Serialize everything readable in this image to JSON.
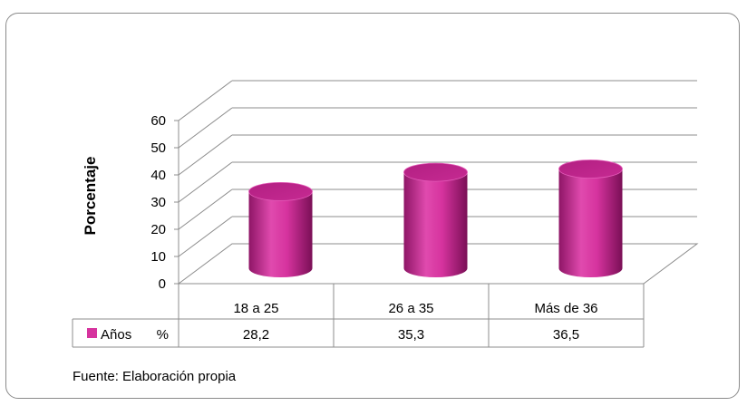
{
  "chart_data": {
    "type": "bar",
    "style": "3d-cylinder",
    "ylabel": "Porcentaje",
    "ylim": [
      0,
      60
    ],
    "yticks": [
      "0",
      "10",
      "20",
      "30",
      "40",
      "50",
      "60"
    ],
    "categories": [
      "18 a 25",
      "26 a 35",
      "Más de 36"
    ],
    "series": [
      {
        "name": "Años %",
        "name_parts": [
          "Años",
          "%"
        ],
        "values": [
          28.2,
          35.3,
          36.5
        ],
        "value_labels": [
          "28,2",
          "35,3",
          "36,5"
        ],
        "color": "#d6339e"
      }
    ],
    "grid": true,
    "data_table": true
  },
  "source_note": "Fuente: Elaboración propia"
}
